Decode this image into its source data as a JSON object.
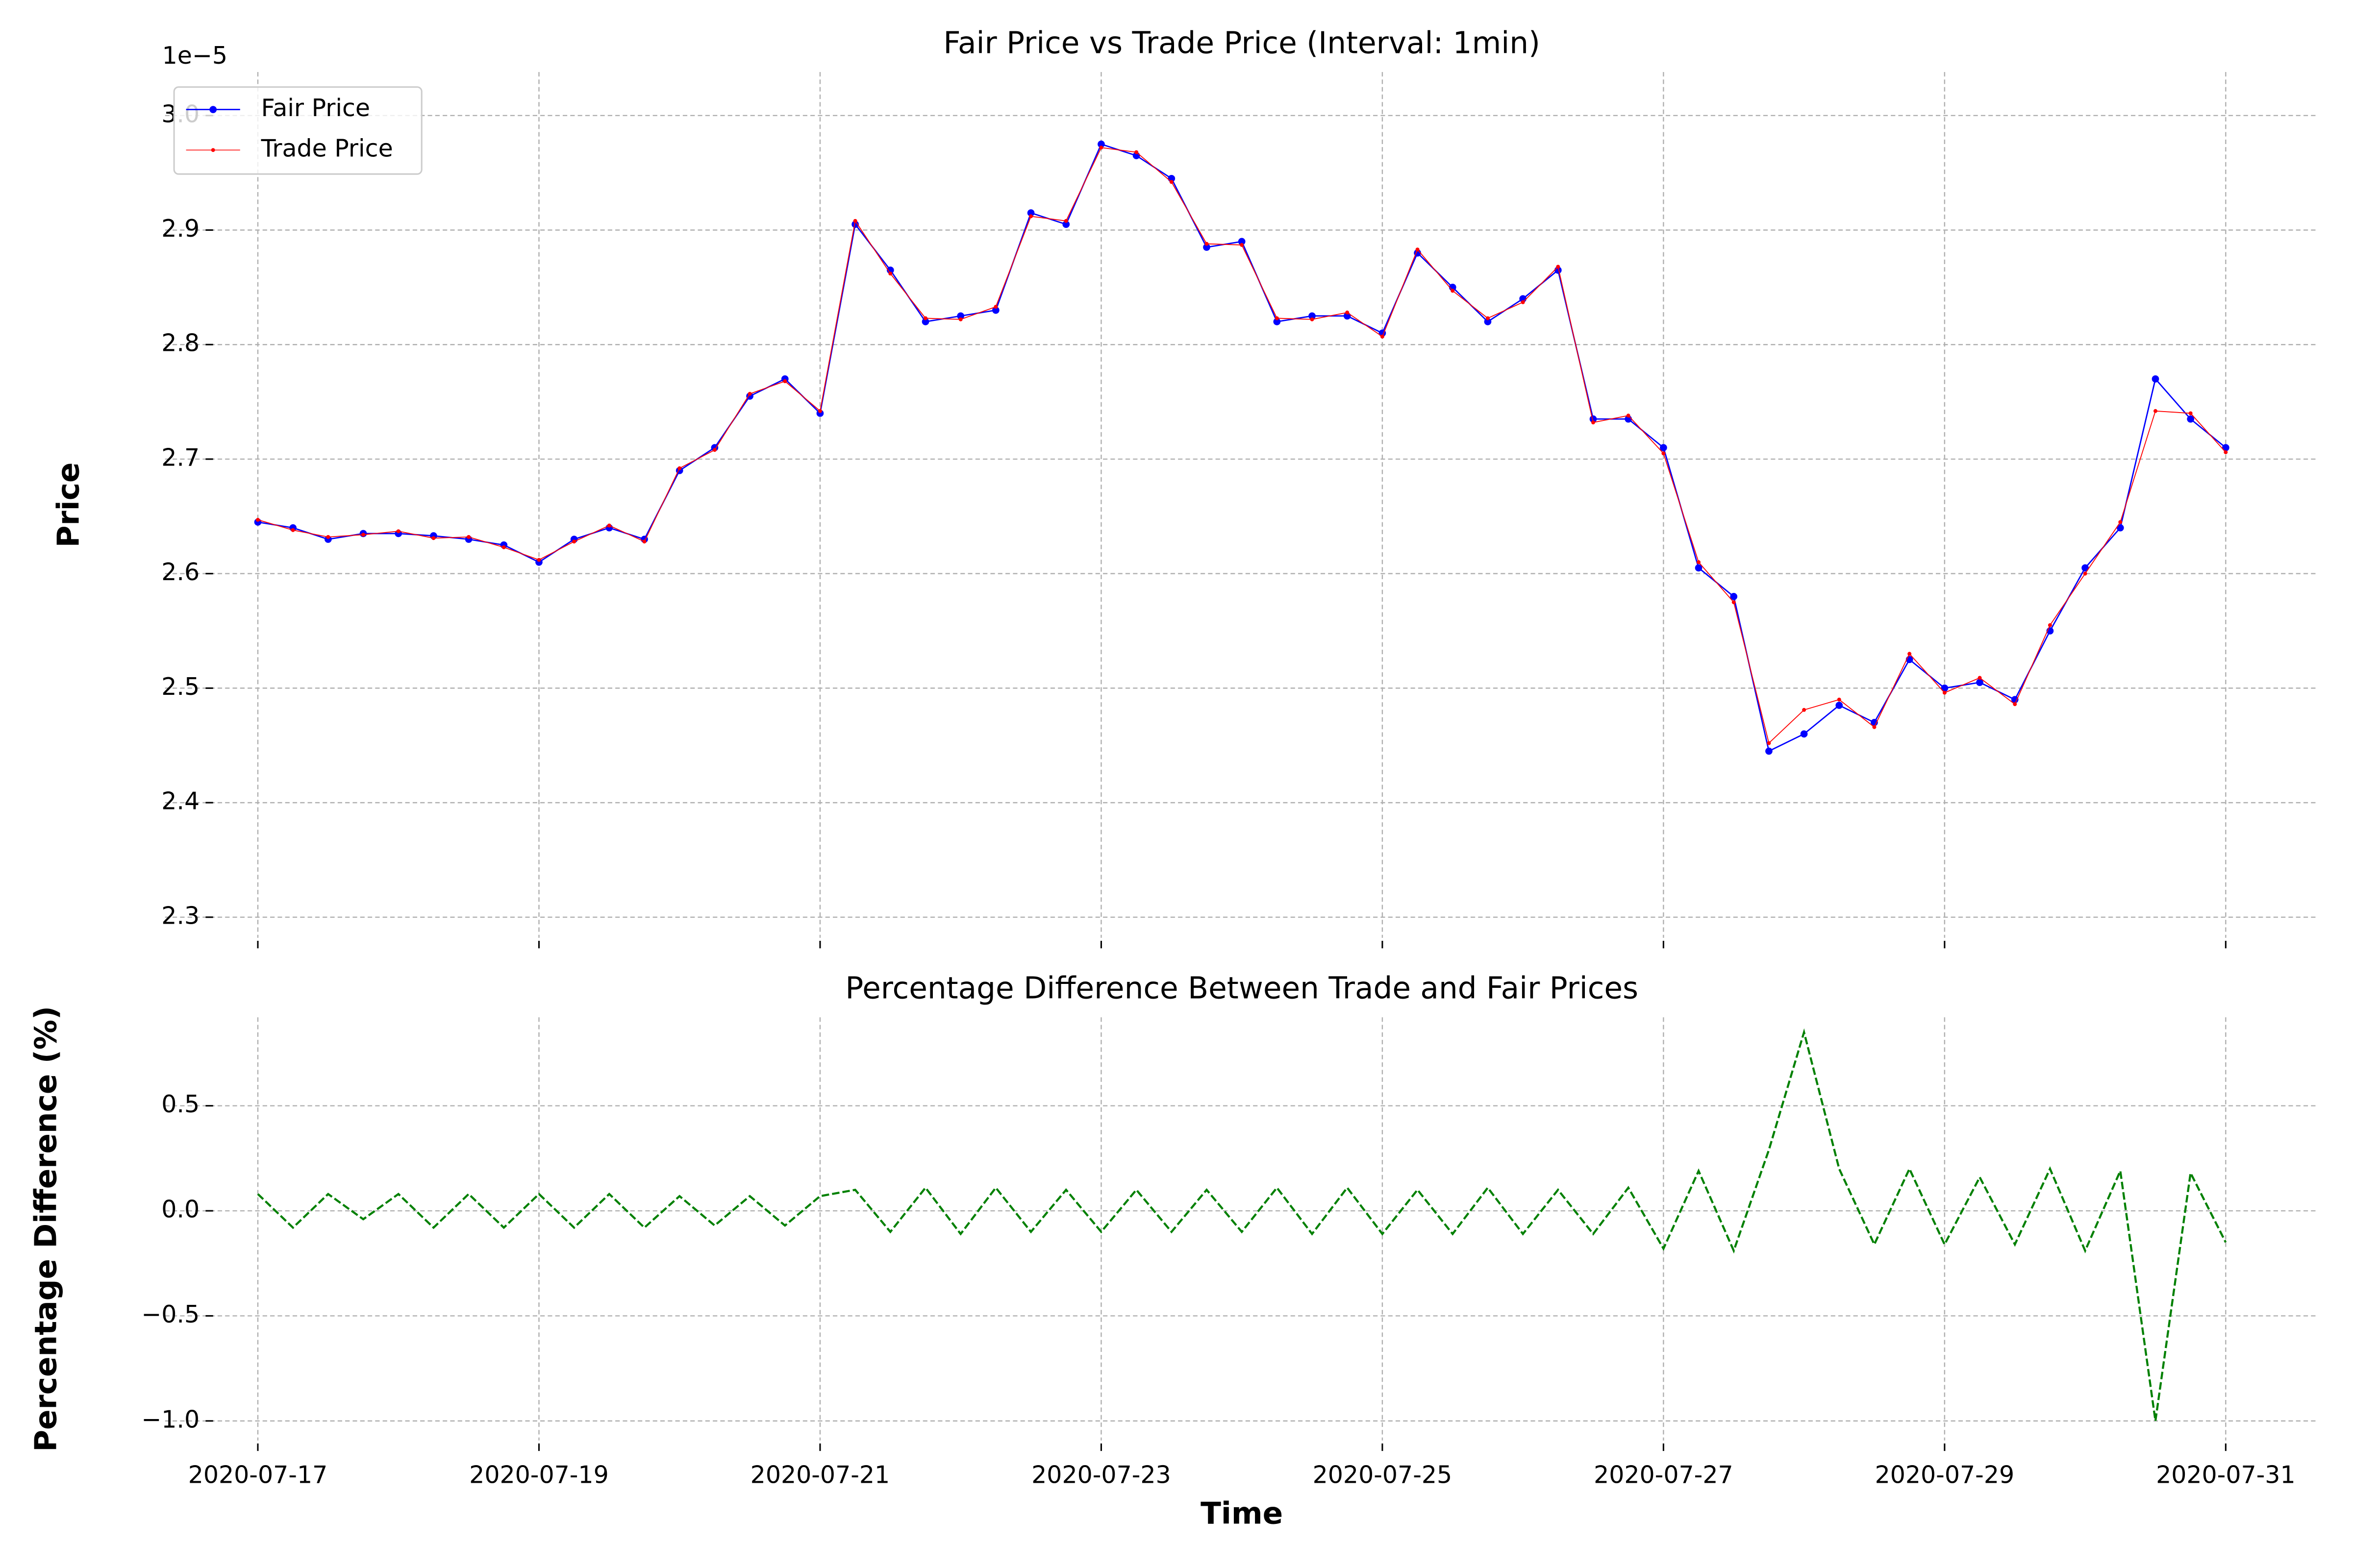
{
  "chart_data": [
    {
      "type": "line",
      "title": "Fair Price vs Trade Price (Interval: 1min)",
      "ylabel": "Price",
      "offset_label": "1e−5",
      "x": [
        0,
        0.25,
        0.5,
        0.75,
        1,
        1.25,
        1.5,
        1.75,
        2,
        2.25,
        2.5,
        2.75,
        3,
        3.25,
        3.5,
        3.75,
        4,
        4.25,
        4.5,
        4.75,
        5,
        5.25,
        5.5,
        5.75,
        6,
        6.25,
        6.5,
        6.75,
        7,
        7.25,
        7.5,
        7.75,
        8,
        8.25,
        8.5,
        8.75,
        9,
        9.25,
        9.5,
        9.75,
        10,
        10.25,
        10.5,
        10.75,
        11,
        11.25,
        11.5,
        11.75,
        12,
        12.25,
        12.5,
        12.75,
        13,
        13.25,
        13.5,
        13.75,
        14
      ],
      "series": [
        {
          "name": "Fair Price",
          "color": "#0000ff",
          "values": [
            2.645,
            2.64,
            2.63,
            2.635,
            2.635,
            2.633,
            2.63,
            2.625,
            2.61,
            2.63,
            2.64,
            2.63,
            2.69,
            2.71,
            2.755,
            2.77,
            2.74,
            2.905,
            2.865,
            2.82,
            2.825,
            2.83,
            2.915,
            2.905,
            2.975,
            2.965,
            2.945,
            2.885,
            2.89,
            2.82,
            2.825,
            2.825,
            2.81,
            2.88,
            2.85,
            2.82,
            2.84,
            2.865,
            2.735,
            2.735,
            2.71,
            2.605,
            2.58,
            2.445,
            2.46,
            2.485,
            2.47,
            2.525,
            2.5,
            2.505,
            2.49,
            2.55,
            2.605,
            2.64,
            2.77,
            2.735,
            2.71
          ]
        },
        {
          "name": "Trade Price",
          "color": "#ff0000",
          "values": [
            2.647,
            2.638,
            2.632,
            2.634,
            2.637,
            2.631,
            2.632,
            2.623,
            2.612,
            2.628,
            2.642,
            2.628,
            2.692,
            2.708,
            2.757,
            2.768,
            2.742,
            2.908,
            2.862,
            2.823,
            2.822,
            2.833,
            2.912,
            2.908,
            2.972,
            2.968,
            2.942,
            2.888,
            2.887,
            2.823,
            2.822,
            2.828,
            2.807,
            2.883,
            2.847,
            2.823,
            2.837,
            2.868,
            2.732,
            2.738,
            2.705,
            2.61,
            2.575,
            2.452,
            2.481,
            2.49,
            2.466,
            2.53,
            2.496,
            2.509,
            2.486,
            2.555,
            2.6,
            2.645,
            2.742,
            2.74,
            2.706
          ]
        }
      ],
      "xlim": [
        -0.66,
        14.66
      ],
      "xticks": [
        0,
        2,
        4,
        6,
        8,
        10,
        12,
        14
      ],
      "ylim": [
        2.282,
        3.038
      ],
      "yticks": [
        2.3,
        2.4,
        2.5,
        2.6,
        2.7,
        2.8,
        2.9,
        {
          "value": 3,
          "label": "3.0"
        }
      ],
      "grid": true,
      "legend": "upper left"
    },
    {
      "type": "line",
      "title": "Percentage Difference Between Trade and Fair Prices",
      "ylabel": "Percentage Difference (%)",
      "xlabel": "Time",
      "x": [
        0,
        0.25,
        0.5,
        0.75,
        1,
        1.25,
        1.5,
        1.75,
        2,
        2.25,
        2.5,
        2.75,
        3,
        3.25,
        3.5,
        3.75,
        4,
        4.25,
        4.5,
        4.75,
        5,
        5.25,
        5.5,
        5.75,
        6,
        6.25,
        6.5,
        6.75,
        7,
        7.25,
        7.5,
        7.75,
        8,
        8.25,
        8.5,
        8.75,
        9,
        9.25,
        9.5,
        9.75,
        10,
        10.25,
        10.5,
        10.75,
        11,
        11.25,
        11.5,
        11.75,
        12,
        12.25,
        12.5,
        12.75,
        13,
        13.25,
        13.5,
        13.75,
        14
      ],
      "series": [
        {
          "name": "Percentage Difference",
          "color": "#008000",
          "values": [
            0.08,
            -0.08,
            0.08,
            -0.04,
            0.08,
            -0.08,
            0.08,
            -0.08,
            0.08,
            -0.08,
            0.08,
            -0.08,
            0.07,
            -0.07,
            0.07,
            -0.07,
            0.07,
            0.1,
            -0.1,
            0.11,
            -0.11,
            0.11,
            -0.1,
            0.1,
            -0.1,
            0.1,
            -0.1,
            0.1,
            -0.1,
            0.11,
            -0.11,
            0.11,
            -0.11,
            0.1,
            -0.11,
            0.11,
            -0.11,
            0.1,
            -0.11,
            0.11,
            -0.18,
            0.19,
            -0.19,
            0.29,
            0.85,
            0.2,
            -0.16,
            0.2,
            -0.16,
            0.16,
            -0.16,
            0.2,
            -0.19,
            0.19,
            -1.0,
            0.18,
            -0.15
          ]
        }
      ],
      "xlim": [
        -0.66,
        14.66
      ],
      "xticks": [
        {
          "value": 0,
          "label": "2020-07-17"
        },
        {
          "value": 2,
          "label": "2020-07-19"
        },
        {
          "value": 4,
          "label": "2020-07-21"
        },
        {
          "value": 6,
          "label": "2020-07-23"
        },
        {
          "value": 8,
          "label": "2020-07-25"
        },
        {
          "value": 10,
          "label": "2020-07-27"
        },
        {
          "value": 12,
          "label": "2020-07-29"
        },
        {
          "value": 14,
          "label": "2020-07-31"
        }
      ],
      "ylim": [
        -1.093,
        0.921
      ],
      "yticks": [
        {
          "value": -1,
          "label": "−1.0"
        },
        {
          "value": -0.5,
          "label": "−0.5"
        },
        {
          "value": 0,
          "label": "0.0"
        },
        {
          "value": 0.5,
          "label": "0.5"
        }
      ],
      "grid": true,
      "linestyle": "dashed"
    }
  ]
}
